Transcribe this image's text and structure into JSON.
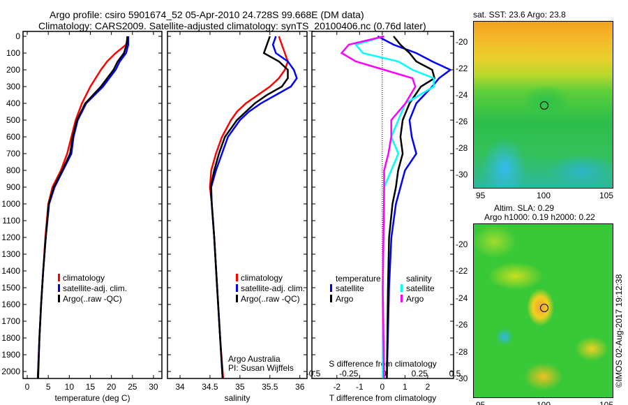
{
  "title_line1": "Argo profile: csiro 5901674_52 05-Apr-2010 24.728S 99.668E (DM data)",
  "title_line2": "Climatology: CARS2009. Satellite-adjusted climatology: synTS_20100406.nc (0.76d later)",
  "colors": {
    "climatology": "#ff0000",
    "satellite": "#0000ff",
    "argo": "#000000",
    "sal_satellite": "#00ffff",
    "sal_argo": "#ff00ff"
  },
  "chart_data": [
    {
      "type": "line",
      "xlabel": "temperature (deg C)",
      "ylabel": "depth",
      "xlim": [
        -1,
        32
      ],
      "ylim": [
        2040,
        0
      ],
      "xticks": [
        0,
        5,
        10,
        15,
        20,
        25,
        30
      ],
      "yticks": [
        0,
        100,
        200,
        300,
        400,
        500,
        600,
        700,
        800,
        900,
        1000,
        1100,
        1200,
        1300,
        1400,
        1500,
        1600,
        1700,
        1800,
        1900,
        2000
      ],
      "legend": [
        "climatology",
        "satellite-adj. clim.",
        "Argo(..raw -QC)"
      ],
      "series": [
        {
          "name": "climatology",
          "color": "#ff0000",
          "depth": [
            0,
            50,
            100,
            150,
            200,
            300,
            400,
            500,
            600,
            700,
            800,
            900,
            1000,
            1200,
            1400,
            1600,
            1800,
            2040
          ],
          "values": [
            24,
            23.5,
            21,
            19,
            17.5,
            15,
            13,
            11.5,
            10.5,
            9.5,
            8,
            6,
            5,
            4.3,
            3.8,
            3.3,
            2.9,
            2.5
          ]
        },
        {
          "name": "satellite-adj. clim.",
          "color": "#0000ff",
          "depth": [
            0,
            50,
            100,
            150,
            200,
            250,
            300,
            400,
            500,
            600,
            700,
            800,
            900,
            1000,
            1200,
            1400,
            1600,
            1800,
            2040
          ],
          "values": [
            24,
            24,
            23.5,
            22,
            21,
            19.5,
            18,
            14,
            12,
            11,
            10.5,
            8.5,
            6.5,
            5.2,
            4.4,
            3.8,
            3.3,
            2.9,
            2.5
          ]
        },
        {
          "name": "Argo(..raw -QC)",
          "color": "#000000",
          "depth": [
            0,
            50,
            100,
            150,
            200,
            250,
            300,
            400,
            500,
            600,
            700,
            800,
            900,
            1000,
            1200,
            1400,
            1600,
            1800,
            2040
          ],
          "values": [
            23.8,
            23.6,
            23,
            21.5,
            20.5,
            19,
            17.5,
            13.8,
            11.8,
            10.8,
            10.2,
            8.3,
            6.3,
            5.1,
            4.4,
            3.8,
            3.3,
            2.9,
            2.6
          ]
        }
      ]
    },
    {
      "type": "line",
      "xlabel": "salinity",
      "ylabel": "depth",
      "xlim": [
        33.79,
        36.12
      ],
      "ylim": [
        2040,
        0
      ],
      "xticks": [
        34,
        34.5,
        35,
        35.5,
        36
      ],
      "legend": [
        "climatology",
        "satellite-adj. clim.",
        "Argo(..raw -QC)"
      ],
      "annotation": [
        "Argo Australia",
        "PI: Susan Wijffels"
      ],
      "series": [
        {
          "name": "climatology",
          "color": "#ff0000",
          "depth": [
            0,
            50,
            100,
            150,
            200,
            250,
            300,
            350,
            400,
            450,
            500,
            600,
            700,
            800,
            900,
            1000,
            1200,
            1500,
            1800,
            2040
          ],
          "values": [
            35.65,
            35.7,
            35.75,
            35.8,
            35.75,
            35.65,
            35.5,
            35.3,
            35.1,
            34.95,
            34.85,
            34.7,
            34.6,
            34.52,
            34.5,
            34.53,
            34.57,
            34.62,
            34.67,
            34.72
          ]
        },
        {
          "name": "satellite-adj. clim.",
          "color": "#0000ff",
          "depth": [
            0,
            50,
            100,
            150,
            200,
            250,
            300,
            350,
            400,
            450,
            500,
            600,
            700,
            800,
            900,
            1000,
            1200,
            1500,
            1800,
            2040
          ],
          "values": [
            35.6,
            35.55,
            35.6,
            35.8,
            35.9,
            35.95,
            35.85,
            35.6,
            35.35,
            35.15,
            35,
            34.8,
            34.7,
            34.6,
            34.52,
            34.53,
            34.57,
            34.62,
            34.67,
            34.71
          ]
        },
        {
          "name": "Argo(..raw -QC)",
          "color": "#000000",
          "depth": [
            0,
            50,
            100,
            120,
            150,
            200,
            250,
            300,
            350,
            400,
            500,
            600,
            700,
            800,
            900,
            1000,
            1200,
            1500,
            1800,
            2040
          ],
          "values": [
            35.5,
            35.45,
            35.4,
            35.5,
            35.65,
            35.8,
            35.8,
            35.7,
            35.45,
            35.25,
            34.95,
            34.75,
            34.65,
            34.57,
            34.51,
            34.53,
            34.57,
            34.62,
            34.67,
            34.71
          ]
        }
      ]
    },
    {
      "type": "line",
      "xlabel": "T difference from climatology",
      "x2label": "S difference from climatology",
      "xlim": [
        -3.1,
        3.14
      ],
      "ylim": [
        2040,
        0
      ],
      "xticks": [
        -2,
        -1,
        0,
        1,
        2
      ],
      "x2ticks": [
        "-0.5",
        "-0.25",
        "0",
        "0.25",
        "0.5"
      ],
      "x2lim": [
        -0.51,
        0.49
      ],
      "legend_titles": [
        "temperature",
        "salinity"
      ],
      "legend": [
        "satellite",
        "Argo",
        "satellite",
        "Argo"
      ],
      "series": [
        {
          "name": "T satellite",
          "color": "#0000ff",
          "axis": "T",
          "depth": [
            0,
            50,
            100,
            150,
            200,
            250,
            300,
            400,
            500,
            600,
            700,
            800,
            900,
            1000,
            1200,
            1500,
            2040
          ],
          "values": [
            -0.2,
            0.5,
            1.5,
            2.2,
            3,
            2.5,
            2.2,
            1.5,
            1.2,
            1.3,
            1.5,
            1,
            0.8,
            0.6,
            0.4,
            0.3,
            0.2
          ]
        },
        {
          "name": "T Argo",
          "color": "#000000",
          "axis": "T",
          "depth": [
            0,
            50,
            100,
            150,
            200,
            250,
            300,
            400,
            500,
            600,
            700,
            800,
            900,
            1000,
            1200,
            1500,
            2040
          ],
          "values": [
            0.5,
            0.8,
            1.2,
            1.5,
            2.2,
            2.3,
            1.7,
            1.2,
            0.9,
            0.8,
            0.9,
            0.7,
            0.6,
            0.45,
            0.3,
            0.25,
            0.2
          ]
        },
        {
          "name": "S satellite",
          "color": "#00ffff",
          "axis": "S",
          "depth": [
            0,
            50,
            100,
            150,
            200,
            250,
            300,
            400,
            500,
            600,
            700,
            800,
            900,
            1000,
            1500,
            2040
          ],
          "values": [
            0,
            -0.2,
            -0.15,
            0.1,
            0.2,
            0.35,
            0.35,
            0.15,
            0.1,
            0.05,
            0.1,
            0.05,
            0,
            0,
            -0.01,
            -0.01
          ]
        },
        {
          "name": "S Argo",
          "color": "#ff00ff",
          "axis": "S",
          "depth": [
            0,
            50,
            100,
            150,
            200,
            250,
            300,
            400,
            500,
            600,
            700,
            800,
            900,
            1500,
            2040
          ],
          "values": [
            0,
            -0.25,
            -0.3,
            -0.2,
            0,
            0.2,
            0.22,
            0.15,
            0.05,
            0.05,
            0.03,
            0,
            0,
            -0.01,
            0
          ]
        }
      ]
    }
  ],
  "maps": [
    {
      "title": "sat. SST: 23.6 Argo: 23.8",
      "yticks": [
        "-20",
        "-22",
        "-24",
        "-26",
        "-28",
        "-30"
      ],
      "xticks": [
        "95",
        "100",
        "105"
      ]
    },
    {
      "title1": "Altim. SLA: 0.29",
      "title2": "Argo h1000: 0.19 h2000: 0.22",
      "yticks": [
        "-20",
        "-22",
        "-24",
        "-26",
        "-28",
        "-30"
      ],
      "xticks": [
        "95",
        "100",
        "105"
      ]
    }
  ],
  "footer": "©IMOS 02-Aug-2017 19:12:38"
}
